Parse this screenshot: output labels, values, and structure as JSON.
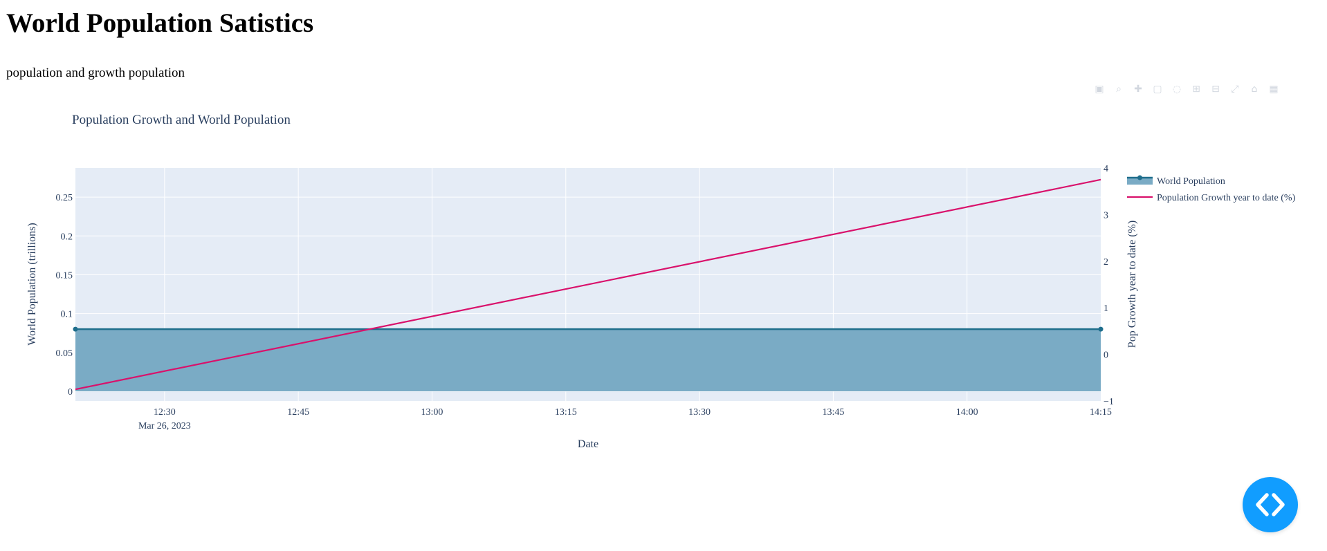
{
  "page": {
    "title": "World Population Satistics",
    "subtitle": "population and growth population"
  },
  "modebar": {
    "icons": [
      "camera-icon",
      "zoom-icon",
      "pan-icon",
      "box-select-icon",
      "lasso-select-icon",
      "zoom-in-icon",
      "zoom-out-icon",
      "autoscale-icon",
      "reset-axes-icon",
      "plotly-logo-icon"
    ]
  },
  "chart_data": {
    "type": "line",
    "title": "Population Growth and World Population",
    "xlabel": "Date",
    "ylabel": "World Population (trillions)",
    "y2label": "Pop Growth year to date (%)",
    "x_range": [
      "2023-03-26 12:20",
      "2023-03-26 14:15"
    ],
    "x_ticks": [
      "12:30",
      "12:45",
      "13:00",
      "13:15",
      "13:30",
      "13:45",
      "14:00",
      "14:15"
    ],
    "x_date_label": "Mar 26, 2023",
    "y_range": [
      -0.0125,
      0.2875
    ],
    "y_ticks": [
      "0",
      "0.05",
      "0.1",
      "0.15",
      "0.2",
      "0.25"
    ],
    "y2_range": [
      -1,
      4
    ],
    "y2_ticks": [
      "−1",
      "0",
      "1",
      "2",
      "3",
      "4"
    ],
    "grid": true,
    "legend_placement": "top-right",
    "series": [
      {
        "name": "World Population",
        "type": "area",
        "axis": "y",
        "color": "#1f6e8c",
        "fill_color": "#7aabc5",
        "x": [
          "2023-03-26 12:20",
          "2023-03-26 14:15"
        ],
        "values": [
          0.08,
          0.08
        ]
      },
      {
        "name": "Population Growth year to date (%)",
        "type": "line",
        "axis": "y2",
        "color": "#d9116b",
        "x": [
          "2023-03-26 12:20",
          "2023-03-26 14:15"
        ],
        "values": [
          -0.75,
          3.75
        ]
      }
    ],
    "colors": {
      "plot_bg": "#e5ecf6",
      "grid": "#ffffff",
      "text": "#2a3f5f"
    }
  },
  "fab": {
    "icon": "code-icon",
    "color": "#119dff"
  }
}
